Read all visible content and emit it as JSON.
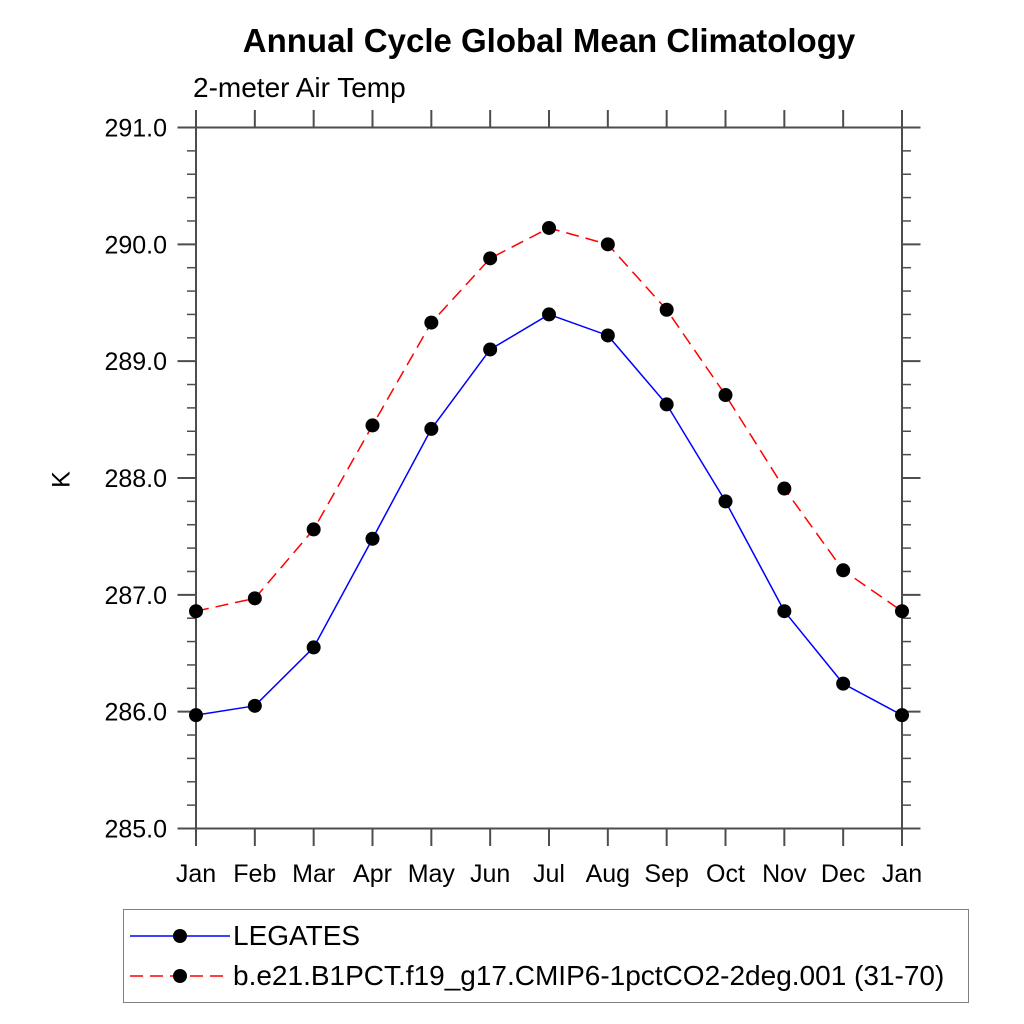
{
  "chart_data": {
    "type": "line",
    "title": "Annual Cycle Global Mean Climatology",
    "subtitle": "2-meter Air Temp",
    "ylabel": "K",
    "x_categories": [
      "Jan",
      "Feb",
      "Mar",
      "Apr",
      "May",
      "Jun",
      "Jul",
      "Aug",
      "Sep",
      "Oct",
      "Nov",
      "Dec",
      "Jan"
    ],
    "ylim": [
      285.0,
      291.0
    ],
    "ytick_interval": 1.0,
    "yminor_interval": 0.2,
    "ytick_labels": [
      "285.0",
      "286.0",
      "287.0",
      "288.0",
      "289.0",
      "290.0",
      "291.0"
    ],
    "grid": false,
    "legend_position": "bottom",
    "series": [
      {
        "name": "LEGATES",
        "line_color": "#0000ff",
        "line_style": "solid",
        "marker": "filled-circle",
        "marker_color": "#000000",
        "values": [
          285.97,
          286.05,
          286.55,
          287.48,
          288.42,
          289.1,
          289.4,
          289.22,
          288.63,
          287.8,
          286.86,
          286.24,
          285.97
        ]
      },
      {
        "name": "b.e21.B1PCT.f19_g17.CMIP6-1pctCO2-2deg.001 (31-70)",
        "line_color": "#ff0000",
        "line_style": "dashed",
        "marker": "filled-circle",
        "marker_color": "#000000",
        "values": [
          286.86,
          286.97,
          287.56,
          288.45,
          289.33,
          289.88,
          290.14,
          290.0,
          289.44,
          288.71,
          287.91,
          287.21,
          286.86
        ]
      }
    ]
  },
  "colors": {
    "axis": "#4d4d4d",
    "text": "#000000",
    "legend_border": "#808080",
    "background": "#ffffff"
  }
}
